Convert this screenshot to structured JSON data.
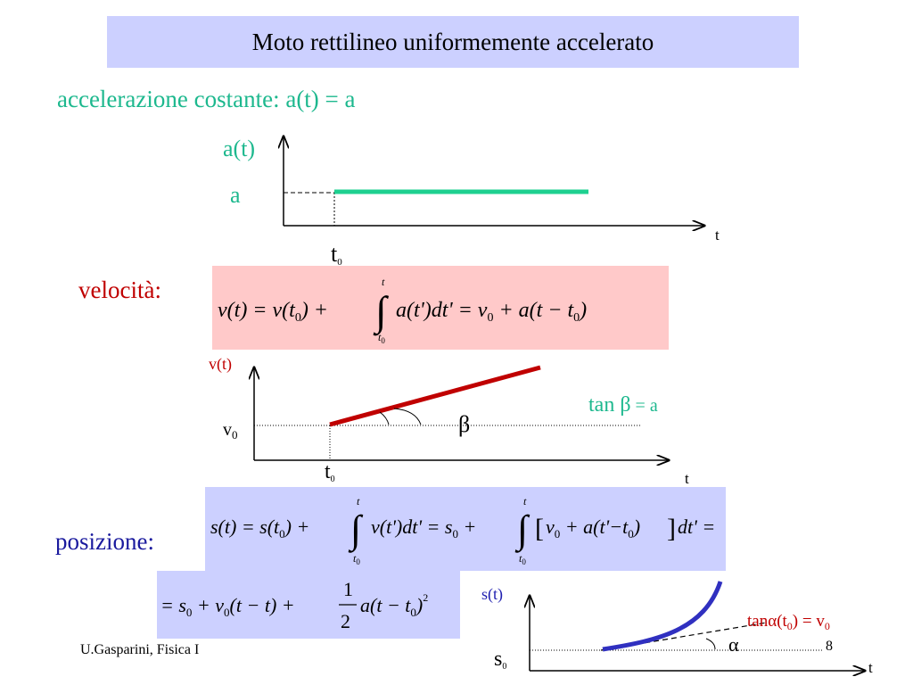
{
  "title": "Moto rettilineo uniformemente accelerato",
  "acceleration_heading": "accelerazione costante: a(t) = a",
  "graph_a": {
    "y_label": "a(t)",
    "level_label": "a",
    "x_label": "t",
    "t0_label": "t",
    "t0_sub": "0",
    "line_color": "#1ed090"
  },
  "velocity": {
    "label": "velocità:",
    "formula": {
      "lhs": "v(t) = v(t",
      "sub0": "0",
      "mid": ") + ",
      "int_upper": "t",
      "int_lower": "t",
      "int_lower_sub": "0",
      "integrand": "a(t')dt' = v",
      "v0_sub": "0",
      "rest": " + a(t − t",
      "rest_sub": "0",
      "end": ")"
    }
  },
  "graph_v": {
    "y_label": "v(t)",
    "v0_label": "v",
    "v0_sub": "0",
    "x_label": "t",
    "t0_label": "t",
    "t0_sub": "0",
    "angle_label": "β",
    "tan_text_pre": "tan ",
    "tan_greek": "β",
    "tan_text_post": " = a",
    "line_color": "#c00000"
  },
  "position": {
    "label": "posizione:",
    "formula1": {
      "lhs": "s(t) = s(t",
      "sub0": "0",
      "mid": ") + ",
      "int1_upper": "t",
      "int1_lower": "t",
      "int1_lower_sub": "0",
      "integrand1": "v(t')dt' = s",
      "s0_sub": "0",
      "plus": " + ",
      "int2_upper": "t",
      "int2_lower": "t",
      "int2_lower_sub": "0",
      "bracket_open": "[",
      "inner": "v",
      "inner_sub": "0",
      "inner2": " + a(t'−t",
      "inner2_sub": "0",
      "inner3": ")",
      "bracket_close": "]",
      "tail": "dt' ="
    },
    "formula2": {
      "pre": "= s",
      "s_sub": "0",
      "mid": " + v",
      "v_sub": "0",
      "mid2": "(t − t) + ",
      "frac_num": "1",
      "frac_den": "2",
      "post": "a(t − t",
      "post_sub": "0",
      "end": ")",
      "exp": "2"
    }
  },
  "graph_s": {
    "y_label": "s(t)",
    "s0_label": "s",
    "s0_sub": "0",
    "x_label": "t",
    "angle_label": "α",
    "tan_pre": "tan",
    "tan_greek": "α",
    "tan_mid": "(t",
    "tan_sub": "0",
    "tan_post": ")  = v",
    "tan_v_sub": "0",
    "curve_color": "#3030c0"
  },
  "footer": {
    "author": "U.Gasparini, Fisica I",
    "page": "8"
  }
}
